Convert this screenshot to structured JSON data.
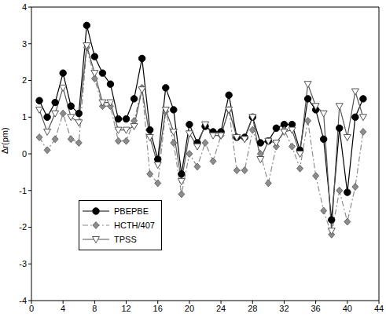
{
  "chart_data": {
    "type": "line",
    "y_label": "Δr(pm)",
    "x": [
      1,
      2,
      3,
      4,
      5,
      6,
      7,
      8,
      9,
      10,
      11,
      12,
      13,
      14,
      15,
      16,
      17,
      18,
      19,
      20,
      21,
      22,
      23,
      24,
      25,
      26,
      27,
      28,
      29,
      30,
      31,
      32,
      33,
      34,
      35,
      36,
      37,
      38,
      39,
      40,
      41,
      42
    ],
    "xlim": [
      0,
      44
    ],
    "xticks": [
      0,
      4,
      8,
      12,
      16,
      20,
      24,
      28,
      32,
      36,
      40,
      44
    ],
    "ylim": [
      -4,
      4
    ],
    "yticks": [
      -4,
      -3,
      -2,
      -1,
      0,
      1,
      2,
      3,
      4
    ],
    "grid": false,
    "legend": "lower left",
    "series": [
      {
        "name": "PBEPBE",
        "color": "#000000",
        "marker": "circle",
        "line_style": "solid",
        "values": [
          1.45,
          1.0,
          1.4,
          2.2,
          1.3,
          1.1,
          3.5,
          2.65,
          2.2,
          1.9,
          0.95,
          0.95,
          1.5,
          2.6,
          0.65,
          -0.15,
          1.8,
          1.2,
          -0.55,
          0.8,
          0.3,
          0.75,
          0.6,
          0.6,
          1.6,
          0.45,
          0.45,
          1.0,
          0.3,
          0.35,
          0.7,
          0.8,
          0.8,
          0.1,
          1.5,
          1.2,
          0.4,
          -1.8,
          0.7,
          -1.05,
          1.0,
          1.5
        ]
      },
      {
        "name": "HCTH/407",
        "color": "#8c8c8c",
        "marker": "diamond",
        "line_style": "dashdot",
        "values": [
          0.45,
          0.1,
          0.4,
          1.1,
          0.4,
          0.3,
          2.9,
          2.05,
          1.3,
          1.3,
          0.35,
          0.35,
          0.9,
          1.8,
          -0.55,
          -0.8,
          1.15,
          0.3,
          -1.1,
          0.0,
          -0.35,
          0.3,
          -0.2,
          0.5,
          1.2,
          -0.45,
          -0.45,
          0.65,
          0.0,
          -0.8,
          0.2,
          0.65,
          0.2,
          -0.4,
          0.9,
          -0.6,
          -1.55,
          -2.2,
          -1.0,
          -1.85,
          -0.9,
          0.6
        ]
      },
      {
        "name": "TPSS",
        "color": "#555555",
        "marker": "triangle-down",
        "line_style": "solid",
        "values": [
          1.2,
          0.6,
          1.1,
          1.8,
          1.0,
          0.85,
          2.95,
          2.2,
          1.4,
          1.4,
          0.65,
          0.65,
          0.75,
          1.75,
          0.45,
          -0.3,
          1.2,
          0.6,
          -0.75,
          0.55,
          0.2,
          0.8,
          0.5,
          0.5,
          1.2,
          0.45,
          0.4,
          1.0,
          -0.15,
          0.35,
          0.3,
          0.6,
          0.65,
          0.0,
          1.9,
          1.3,
          1.1,
          -2.1,
          1.3,
          0.45,
          1.7,
          1.0
        ]
      }
    ]
  }
}
